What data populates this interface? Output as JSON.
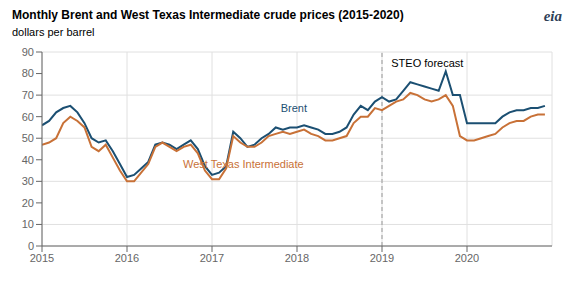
{
  "chart_data": {
    "type": "line",
    "title": "Monthly Brent and West Texas Intermediate crude prices (2015-2020)",
    "subtitle": "dollars per barrel",
    "logo": "eia",
    "x": [
      2015.0,
      2015.0833333333333,
      2015.1666666666667,
      2015.25,
      2015.3333333333333,
      2015.4166666666667,
      2015.5,
      2015.5833333333333,
      2015.6666666666667,
      2015.75,
      2015.8333333333333,
      2015.9166666666667,
      2016.0,
      2016.0833333333333,
      2016.1666666666667,
      2016.25,
      2016.3333333333333,
      2016.4166666666667,
      2016.5,
      2016.5833333333333,
      2016.6666666666667,
      2016.75,
      2016.8333333333333,
      2016.9166666666667,
      2017.0,
      2017.0833333333333,
      2017.1666666666667,
      2017.25,
      2017.3333333333333,
      2017.4166666666667,
      2017.5,
      2017.5833333333333,
      2017.6666666666667,
      2017.75,
      2017.8333333333333,
      2017.9166666666667,
      2018.0,
      2018.0833333333333,
      2018.1666666666667,
      2018.25,
      2018.3333333333333,
      2018.4166666666667,
      2018.5,
      2018.5833333333333,
      2018.6666666666667,
      2018.75,
      2018.8333333333333,
      2018.9166666666667,
      2019.0,
      2019.0833333333333,
      2019.1666666666667,
      2019.25,
      2019.3333333333333,
      2019.4166666666667,
      2019.5,
      2019.5833333333333,
      2019.6666666666667,
      2019.75,
      2019.8333333333333,
      2019.9166666666667,
      2020.0,
      2020.0833333333333,
      2020.1666666666667,
      2020.25,
      2020.3333333333333,
      2020.4166666666667,
      2020.5,
      2020.5833333333333,
      2020.6666666666667,
      2020.75,
      2020.8333333333333,
      2020.9166666666667
    ],
    "series": [
      {
        "name": "Brent",
        "color": "#1b4f72",
        "values": [
          56,
          58,
          62,
          64,
          65,
          62,
          57,
          50,
          48,
          49,
          44,
          38,
          32,
          33,
          36,
          39,
          47,
          48,
          47,
          45,
          47,
          49,
          45,
          37,
          33,
          34,
          37,
          53,
          50,
          46,
          47,
          50,
          52,
          55,
          54,
          55,
          55,
          56,
          55,
          54,
          52,
          52,
          53,
          55,
          61,
          65,
          63,
          67,
          69,
          67,
          68,
          72,
          76,
          75,
          74,
          73,
          72,
          81,
          70,
          70,
          57,
          57,
          57,
          57,
          57,
          60,
          62,
          63,
          63,
          64,
          64,
          65
        ]
      },
      {
        "name": "West Texas Intermediate",
        "color": "#c87137",
        "values": [
          47,
          48,
          50,
          57,
          60,
          58,
          55,
          46,
          44,
          47,
          41,
          35,
          30,
          30,
          34,
          38,
          46,
          48,
          46,
          44,
          46,
          47,
          43,
          35,
          31,
          31,
          36,
          51,
          48,
          46,
          46,
          48,
          51,
          52,
          53,
          52,
          53,
          54,
          52,
          51,
          49,
          49,
          50,
          51,
          57,
          60,
          60,
          64,
          63,
          65,
          67,
          68,
          71,
          70,
          68,
          67,
          68,
          70,
          65,
          51,
          49,
          49,
          50,
          51,
          52,
          55,
          57,
          58,
          58,
          60,
          61,
          61
        ]
      }
    ],
    "vlines": [
      2019.0
    ],
    "annotations": [
      {
        "text": "STEO forecast",
        "x": 2019.05,
        "y": 85,
        "color": "#000000"
      },
      {
        "text": "Brent",
        "x": 2017.75,
        "y": 64,
        "color": "#1b4f72"
      },
      {
        "text": "West Texas Intermediate",
        "x": 2016.6,
        "y": 38,
        "color": "#c87137"
      }
    ],
    "xlim": [
      2015.0,
      2021.0
    ],
    "xticks": [
      2015,
      2016,
      2017,
      2018,
      2019,
      2020
    ],
    "ylim": [
      0,
      90
    ],
    "yticks": [
      0,
      10,
      20,
      30,
      40,
      50,
      60,
      70,
      80,
      90
    ],
    "grid": true
  }
}
